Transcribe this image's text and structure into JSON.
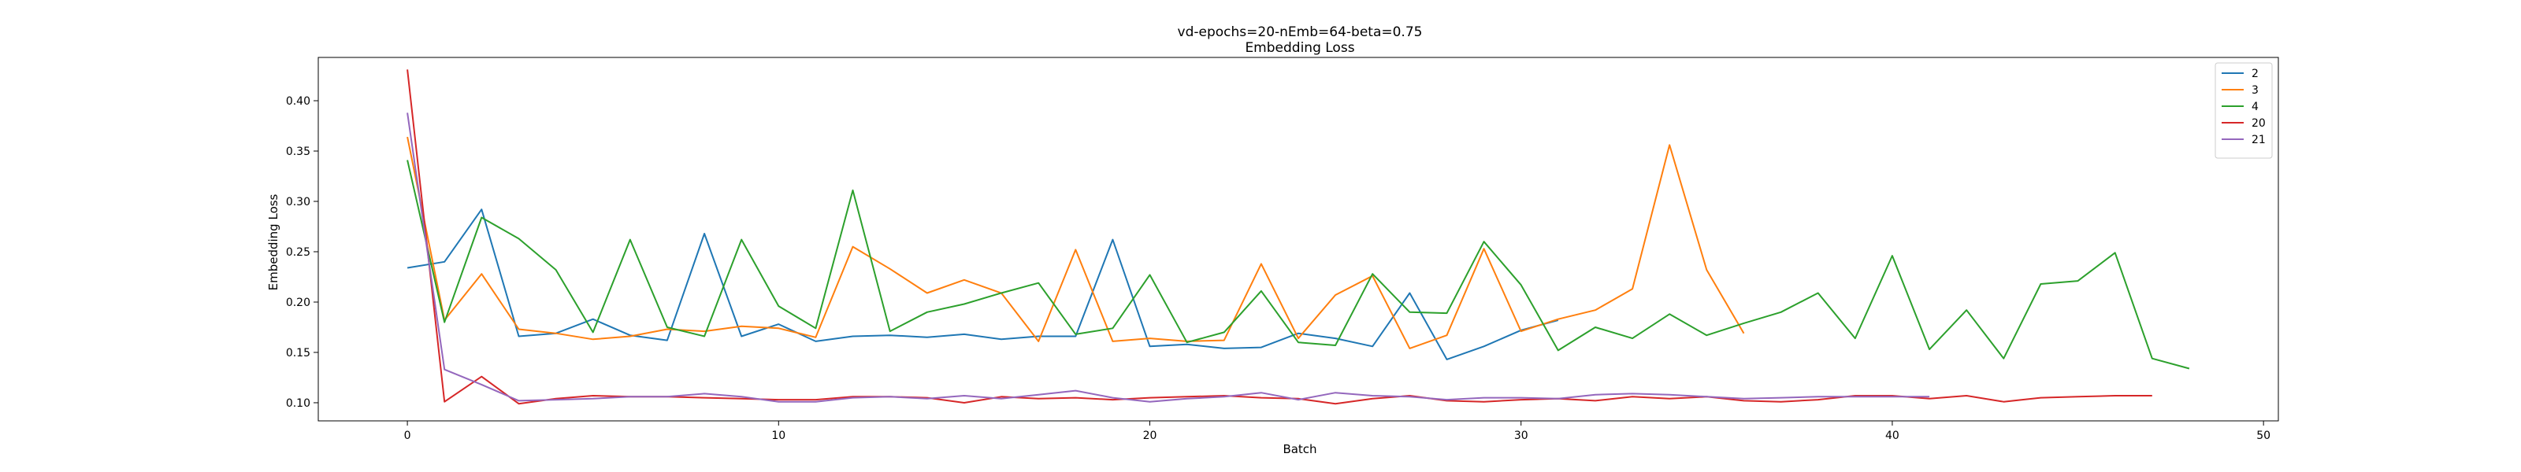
{
  "chart_data": {
    "type": "line",
    "title": "vd-epochs=20-nEmb=64-beta=0.75",
    "subtitle": "Embedding Loss",
    "xlabel": "Batch",
    "ylabel": "Embedding Loss",
    "xlim": [
      -2.4,
      50.4
    ],
    "ylim": [
      0.082,
      0.443
    ],
    "xticks": [
      0,
      10,
      20,
      30,
      40,
      50
    ],
    "yticks": [
      0.1,
      0.15,
      0.2,
      0.25,
      0.3,
      0.35,
      0.4
    ],
    "grid": false,
    "legend_position": "top-right",
    "series": [
      {
        "name": "2",
        "color": "#1f77b4",
        "values": [
          0.234,
          0.24,
          0.292,
          0.166,
          0.169,
          0.183,
          0.167,
          0.162,
          0.268,
          0.166,
          0.178,
          0.161,
          0.166,
          0.167,
          0.165,
          0.168,
          0.163,
          0.166,
          0.166,
          0.262,
          0.156,
          0.158,
          0.154,
          0.155,
          0.169,
          0.164,
          0.156,
          0.209,
          0.143,
          0.156,
          0.172,
          0.182
        ]
      },
      {
        "name": "3",
        "color": "#ff7f0e",
        "values": [
          0.364,
          0.182,
          0.228,
          0.173,
          0.169,
          0.163,
          0.166,
          0.173,
          0.171,
          0.176,
          0.174,
          0.165,
          0.255,
          0.233,
          0.209,
          0.222,
          0.209,
          0.161,
          0.252,
          0.161,
          0.164,
          0.161,
          0.162,
          0.238,
          0.164,
          0.207,
          0.226,
          0.154,
          0.167,
          0.253,
          0.171,
          0.183,
          0.192,
          0.213,
          0.356,
          0.232,
          0.169
        ]
      },
      {
        "name": "4",
        "color": "#2ca02c",
        "values": [
          0.341,
          0.18,
          0.284,
          0.263,
          0.232,
          0.17,
          0.262,
          0.175,
          0.166,
          0.262,
          0.196,
          0.174,
          0.311,
          0.171,
          0.19,
          0.198,
          0.209,
          0.219,
          0.168,
          0.174,
          0.227,
          0.16,
          0.17,
          0.211,
          0.16,
          0.157,
          0.228,
          0.19,
          0.189,
          0.26,
          0.217,
          0.152,
          0.175,
          0.164,
          0.188,
          0.167,
          0.179,
          0.19,
          0.209,
          0.164,
          0.246,
          0.153,
          0.192,
          0.144,
          0.218,
          0.221,
          0.249,
          0.144,
          0.134
        ]
      },
      {
        "name": "20",
        "color": "#d62728",
        "values": [
          0.431,
          0.101,
          0.126,
          0.099,
          0.104,
          0.107,
          0.106,
          0.106,
          0.105,
          0.104,
          0.103,
          0.103,
          0.106,
          0.106,
          0.105,
          0.1,
          0.106,
          0.104,
          0.105,
          0.103,
          0.105,
          0.106,
          0.107,
          0.105,
          0.104,
          0.099,
          0.104,
          0.107,
          0.102,
          0.101,
          0.103,
          0.104,
          0.102,
          0.106,
          0.104,
          0.106,
          0.102,
          0.101,
          0.103,
          0.107,
          0.107,
          0.104,
          0.107,
          0.101,
          0.105,
          0.106,
          0.107,
          0.107
        ]
      },
      {
        "name": "21",
        "color": "#9467bd",
        "values": [
          0.388,
          0.133,
          0.118,
          0.102,
          0.103,
          0.104,
          0.106,
          0.106,
          0.109,
          0.106,
          0.101,
          0.101,
          0.105,
          0.106,
          0.104,
          0.107,
          0.104,
          0.108,
          0.112,
          0.105,
          0.101,
          0.104,
          0.106,
          0.11,
          0.103,
          0.11,
          0.107,
          0.106,
          0.103,
          0.105,
          0.105,
          0.104,
          0.108,
          0.109,
          0.108,
          0.106,
          0.104,
          0.105,
          0.106,
          0.106,
          0.106,
          0.106
        ]
      }
    ]
  }
}
